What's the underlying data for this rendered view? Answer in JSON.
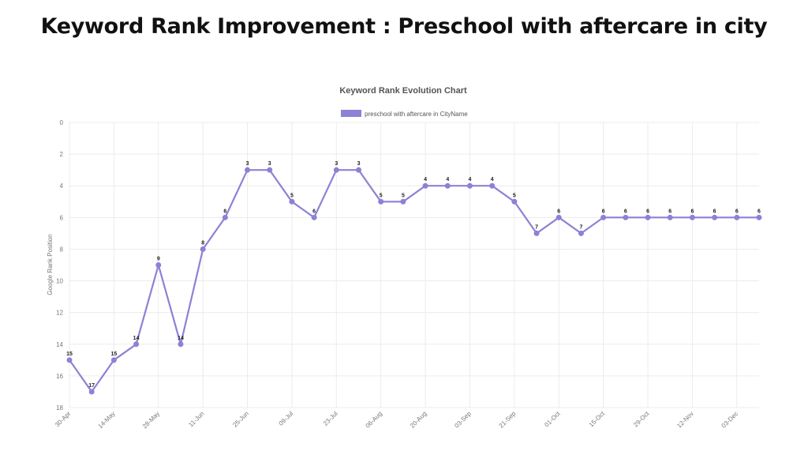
{
  "page": {
    "heading": "Keyword Rank Improvement : Preschool with aftercare in city"
  },
  "chart_data": {
    "type": "line",
    "title": "Keyword Rank Evolution Chart",
    "ylabel": "Google Rank Position",
    "xlabel": "",
    "ylim": [
      0,
      18
    ],
    "y_reversed": true,
    "y_ticks": [
      0,
      2,
      4,
      6,
      8,
      10,
      12,
      14,
      16,
      18
    ],
    "grid": true,
    "legend_position": "top",
    "x_tick_labels": [
      "30-Apr",
      "14-May",
      "28-May",
      "11-Jun",
      "25-Jun",
      "09-Jul",
      "23-Jul",
      "06-Aug",
      "20-Aug",
      "03-Sep",
      "21-Sep",
      "01-Oct",
      "15-Oct",
      "29-Oct",
      "12-Nov",
      "03-Dec"
    ],
    "series": [
      {
        "name": "preschool with aftercare in CityName",
        "color": "#8b82d6",
        "values": [
          15,
          17,
          15,
          14,
          9,
          14,
          8,
          6,
          3,
          3,
          5,
          6,
          3,
          3,
          5,
          5,
          4,
          4,
          4,
          4,
          5,
          7,
          6,
          7,
          6,
          6,
          6,
          6,
          6,
          6,
          6,
          6
        ]
      }
    ]
  }
}
